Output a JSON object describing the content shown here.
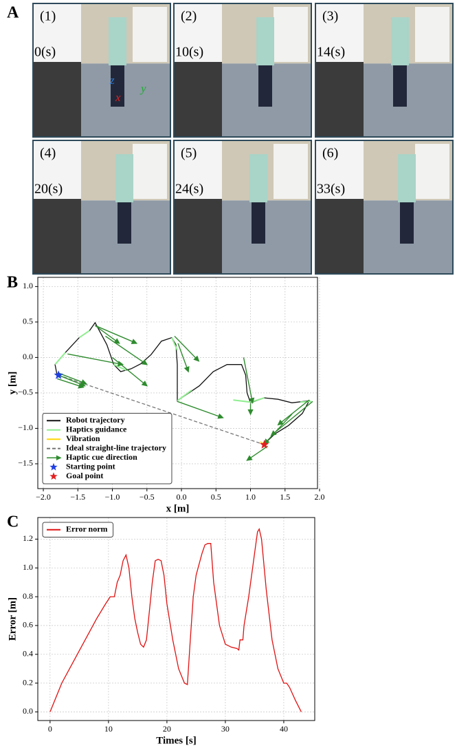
{
  "panels": [
    "A",
    "B",
    "C"
  ],
  "photos": [
    {
      "label": "(1)",
      "time": "0(s)",
      "axes": [
        "z",
        "y",
        "x"
      ]
    },
    {
      "label": "(2)",
      "time": "10(s)"
    },
    {
      "label": "(3)",
      "time": "14(s)"
    },
    {
      "label": "(4)",
      "time": "20(s)"
    },
    {
      "label": "(5)",
      "time": "24(s)"
    },
    {
      "label": "(6)",
      "time": "33(s)"
    }
  ],
  "chart_data": [
    {
      "type": "line",
      "xlabel": "x [m]",
      "ylabel": "y [m]",
      "xlim": [
        -2.08,
        1.97
      ],
      "ylim": [
        -1.85,
        1.13
      ],
      "xticks": [
        {
          "value": -2,
          "label": "−2.0"
        },
        {
          "value": -1.5,
          "label": "−1.5"
        },
        {
          "value": -1,
          "label": "−1.0"
        },
        {
          "value": -0.5,
          "label": "−0.5"
        },
        {
          "value": 0,
          "label": "0.0"
        },
        0.5,
        {
          "value": 1,
          "label": "1.0"
        },
        1.5,
        {
          "value": 2,
          "label": "2.0"
        }
      ],
      "yticks": [
        {
          "value": 1,
          "label": "1.0"
        },
        0.5,
        {
          "value": 0,
          "label": "0.0"
        },
        {
          "value": -0.5,
          "label": "−0.5"
        },
        {
          "value": -1,
          "label": "−1.0"
        },
        {
          "value": -1.5,
          "label": "−1.5"
        }
      ],
      "grid": true,
      "legend": "lower left",
      "series": [
        {
          "name": "Robot trajectory",
          "color": "#111111",
          "style": "solid",
          "x": [
            -1.8,
            -1.83,
            -1.68,
            -1.48,
            -1.33,
            -1.25,
            -1.08,
            -0.98,
            -0.88,
            -0.73,
            -0.59,
            -0.44,
            -0.29,
            -0.14,
            -0.08,
            -0.06,
            -0.06,
            0.26,
            0.46,
            0.66,
            0.87,
            0.93,
            0.95,
            1.0,
            1.2,
            1.4,
            1.6,
            1.85,
            1.75,
            1.55,
            1.35,
            1.2
          ],
          "values": [
            -0.25,
            -0.1,
            0.07,
            0.28,
            0.38,
            0.49,
            0.18,
            -0.1,
            -0.2,
            -0.16,
            -0.09,
            0.04,
            0.23,
            0.28,
            0.18,
            -0.1,
            -0.61,
            -0.4,
            -0.2,
            -0.1,
            -0.1,
            -0.25,
            -0.5,
            -0.64,
            -0.57,
            -0.59,
            -0.64,
            -0.61,
            -0.79,
            -0.96,
            -1.08,
            -1.22
          ]
        },
        {
          "name": "Haptics guidance",
          "color": "#90ee90",
          "style": "solid",
          "x": [
            -1.83,
            -1.68,
            null,
            -1.48,
            -1.33,
            null,
            -0.98,
            -0.8,
            null,
            -0.14,
            -0.06,
            null,
            -0.06,
            0.15,
            null,
            0.75,
            1.0,
            1.2,
            null,
            1.72,
            1.88
          ],
          "values": [
            -0.1,
            0.07,
            null,
            0.28,
            0.38,
            null,
            -0.1,
            -0.18,
            null,
            0.28,
            0.1,
            null,
            -0.61,
            -0.46,
            null,
            -0.6,
            -0.63,
            -0.57,
            null,
            -0.63,
            -0.62
          ]
        },
        {
          "name": "Vibration",
          "color": "#ffd700",
          "style": "solid",
          "x": [
            1.14,
            1.22
          ],
          "values": [
            -1.19,
            -1.23
          ]
        },
        {
          "name": "Ideal straight-line trajectory",
          "color": "#777777",
          "style": "dashed",
          "x": [
            -1.78,
            1.2
          ],
          "values": [
            -0.25,
            -1.23
          ]
        },
        {
          "name": "Haptic cue direction",
          "color": "#2e8b2e",
          "style": "arrow",
          "x": [
            -1.78,
            -1.78,
            -1.8,
            -1.65,
            -1.25,
            -1.25,
            -1.1,
            -1.0,
            -0.1,
            -0.05,
            -0.06,
            0.9,
            1.0,
            1.85,
            1.9,
            1.6,
            1.25
          ],
          "values": [
            -0.22,
            -0.25,
            -0.3,
            0.05,
            0.45,
            0.45,
            0.3,
            0.0,
            0.3,
            0.2,
            -0.62,
            0.0,
            -0.65,
            -0.6,
            -0.62,
            -0.8,
            -1.25
          ],
          "u": [
            0.4,
            0.38,
            0.38,
            0.8,
            0.35,
            0.6,
            0.6,
            0.5,
            0.35,
            0.15,
            0.66,
            0.13,
            0.0,
            -0.45,
            -0.6,
            -0.4,
            -0.3
          ],
          "v": [
            -0.15,
            -0.15,
            -0.12,
            -0.15,
            -0.25,
            -0.25,
            -0.4,
            -0.4,
            -0.35,
            -0.4,
            -0.23,
            -0.64,
            -0.15,
            -0.35,
            -0.48,
            -0.42,
            -0.2
          ]
        },
        {
          "name": "Starting point",
          "color": "#1f3fe0",
          "style": "star",
          "x": [
            -1.78
          ],
          "values": [
            -0.25
          ]
        },
        {
          "name": "Goal point",
          "color": "#e02020",
          "style": "star",
          "x": [
            1.2
          ],
          "values": [
            -1.23
          ]
        }
      ]
    },
    {
      "type": "line",
      "xlabel": "Times [s]",
      "ylabel": "Error [m]",
      "xlim": [
        -2.1,
        45.3
      ],
      "ylim": [
        -0.06,
        1.35
      ],
      "xticks": [
        0,
        10,
        20,
        30,
        40
      ],
      "yticks": [
        {
          "value": 0,
          "label": "0.0"
        },
        0.2,
        0.4,
        0.6,
        0.8,
        {
          "value": 1,
          "label": "1.0"
        },
        1.2
      ],
      "grid": true,
      "legend": "upper left",
      "series": [
        {
          "name": "Error norm",
          "color": "#e01010",
          "style": "solid",
          "x": [
            0,
            1,
            2,
            4,
            6,
            8,
            9.5,
            10.3,
            11,
            11.5,
            12,
            12.5,
            13,
            13.5,
            14,
            14.5,
            15,
            15.5,
            16,
            16.5,
            17,
            17.5,
            18,
            18.5,
            19,
            19.5,
            20,
            21,
            22,
            23,
            23.5,
            24,
            24.5,
            25,
            26,
            26.5,
            27,
            27.5,
            28,
            29,
            30,
            31,
            32,
            32.3,
            32.5,
            33,
            33.2,
            34,
            35,
            35.5,
            35.8,
            36.2,
            37,
            38,
            39,
            40,
            40.5,
            41,
            42,
            43
          ],
          "values": [
            0,
            0.1,
            0.2,
            0.35,
            0.5,
            0.65,
            0.75,
            0.8,
            0.8,
            0.9,
            0.95,
            1.05,
            1.09,
            1.0,
            0.8,
            0.65,
            0.55,
            0.47,
            0.45,
            0.5,
            0.7,
            0.9,
            1.05,
            1.06,
            1.05,
            0.95,
            0.75,
            0.5,
            0.3,
            0.2,
            0.19,
            0.5,
            0.8,
            0.95,
            1.1,
            1.16,
            1.17,
            1.17,
            0.9,
            0.6,
            0.47,
            0.45,
            0.44,
            0.43,
            0.5,
            0.5,
            0.6,
            0.8,
            1.1,
            1.25,
            1.27,
            1.2,
            0.85,
            0.5,
            0.3,
            0.2,
            0.2,
            0.17,
            0.08,
            0
          ]
        }
      ]
    }
  ]
}
